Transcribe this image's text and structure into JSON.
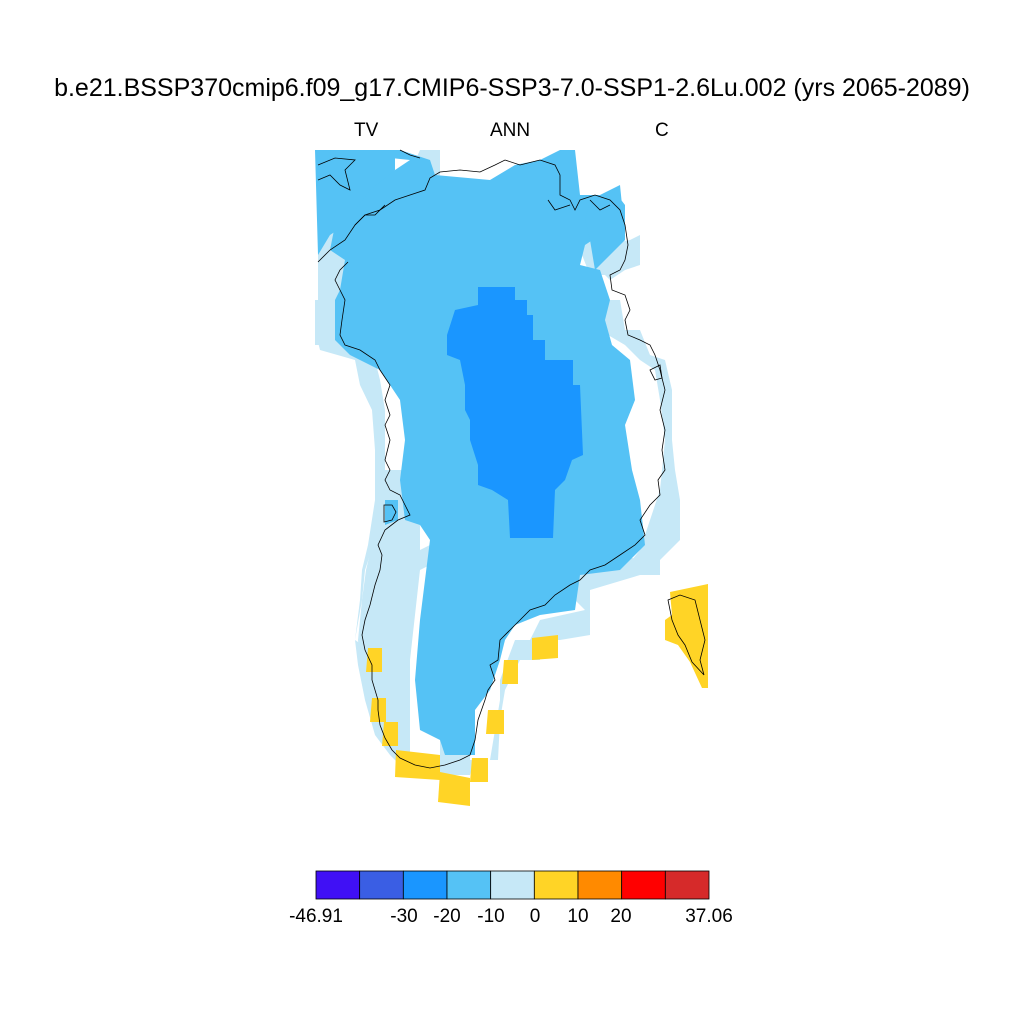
{
  "title": "b.e21.BSSP370cmip6.f09_g17.CMIP6-SSP3-7.0-SSP1-2.6Lu.002 (yrs 2065-2089)",
  "subtitle_left": "TV",
  "subtitle_center": "ANN",
  "subtitle_right": "C",
  "colorbar": {
    "colors": [
      "#4010f5",
      "#3a5ee4",
      "#1a96ff",
      "#55c2f5",
      "#c6e8f7",
      "#ffd426",
      "#ff8a00",
      "#ff0000",
      "#d62a2a"
    ],
    "labels": [
      "-46.91",
      "-30",
      "-20",
      "-10",
      "0",
      "10",
      "20",
      "37.06"
    ]
  }
}
